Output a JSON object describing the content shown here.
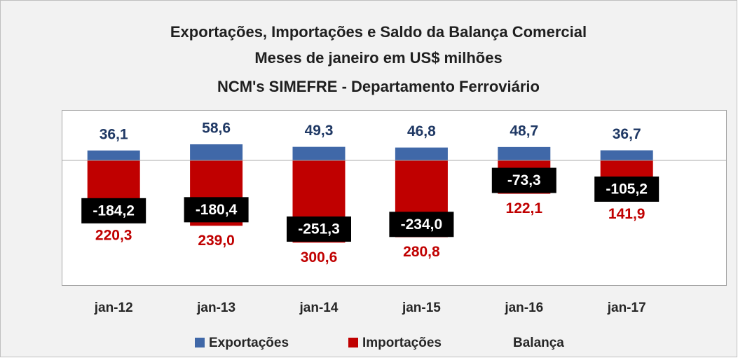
{
  "chart_data": {
    "type": "bar",
    "title": [
      "Exportações, Importações e Saldo da Balança Comercial",
      "Meses de janeiro em US$ milhões",
      "NCM's SIMEFRE - Departamento Ferroviário"
    ],
    "categories": [
      "jan-12",
      "jan-13",
      "jan-14",
      "jan-15",
      "jan-16",
      "jan-17"
    ],
    "ylim": [
      -456,
      184
    ],
    "legend": "bottom",
    "series": [
      {
        "name": "Exportações",
        "color": "#4068a8",
        "values": [
          36.1,
          58.6,
          49.3,
          46.8,
          48.7,
          36.7
        ],
        "value_labels": [
          "36,1",
          "58,6",
          "49,3",
          "46,8",
          "48,7",
          "36,7"
        ]
      },
      {
        "name": "Importações",
        "color": "#c00000",
        "values": [
          -220.3,
          -239.0,
          -300.6,
          -280.8,
          -122.1,
          -141.9
        ],
        "value_labels": [
          "220,3",
          "239,0",
          "300,6",
          "280,8",
          "122,1",
          "141,9"
        ]
      },
      {
        "name": "Balança",
        "color": "#000000",
        "values": [
          -184.2,
          -180.4,
          -251.3,
          -234.0,
          -73.3,
          -105.2
        ],
        "value_labels": [
          "-184,2",
          "-180,4",
          "-251,3",
          "-234,0",
          "-73,3",
          "-105,2"
        ]
      }
    ]
  }
}
